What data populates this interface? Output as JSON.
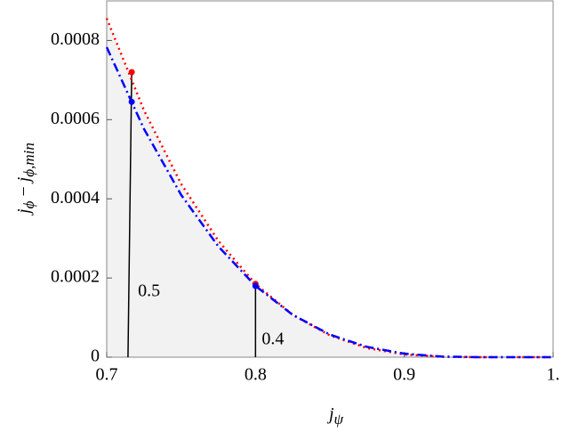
{
  "chart_data": {
    "type": "line",
    "x_label": {
      "main": "j",
      "sub": "ψ"
    },
    "y_label": {
      "main": "j",
      "sub": "ϕ",
      "op": " − ",
      "main2": "j",
      "sub2": "ϕ,min"
    },
    "x": [
      0.7,
      0.725,
      0.75,
      0.775,
      0.8,
      0.825,
      0.85,
      0.875,
      0.9,
      0.925,
      0.95,
      0.975,
      1.0
    ],
    "series": [
      {
        "color": "#ff0000",
        "dash": "dotted",
        "values": [
          0.000856,
          0.000624,
          0.000438,
          0.000294,
          0.000185,
          0.000107,
          5.5e-05,
          2.3e-05,
          7e-06,
          1e-06,
          0,
          0,
          0
        ]
      },
      {
        "color": "#0000ff",
        "dash": "dashdot",
        "values": [
          0.000783,
          0.000577,
          0.00041,
          0.00028,
          0.00018,
          0.000107,
          5.7e-05,
          2.6e-05,
          8.9e-06,
          1.6e-06,
          0,
          0,
          0
        ]
      }
    ],
    "shade": "#f2f2f2",
    "annotations": [
      {
        "label": "0.5",
        "x0": 0.7143,
        "x": 0.7168,
        "red_y": 0.00072,
        "blue_y": 0.000645
      },
      {
        "label": "0.4",
        "x0": 0.8,
        "x": 0.8,
        "red_y": 0.000185,
        "blue_y": 0.00018
      }
    ],
    "xlim": [
      0.7,
      1.0
    ],
    "ylim": [
      0,
      0.0009
    ],
    "xticks": [
      0.7,
      0.8,
      0.9,
      {
        "value": 1,
        "label": "1."
      }
    ],
    "yticks": [
      0,
      0.0002,
      0.0004,
      0.0006,
      0.0008
    ]
  }
}
